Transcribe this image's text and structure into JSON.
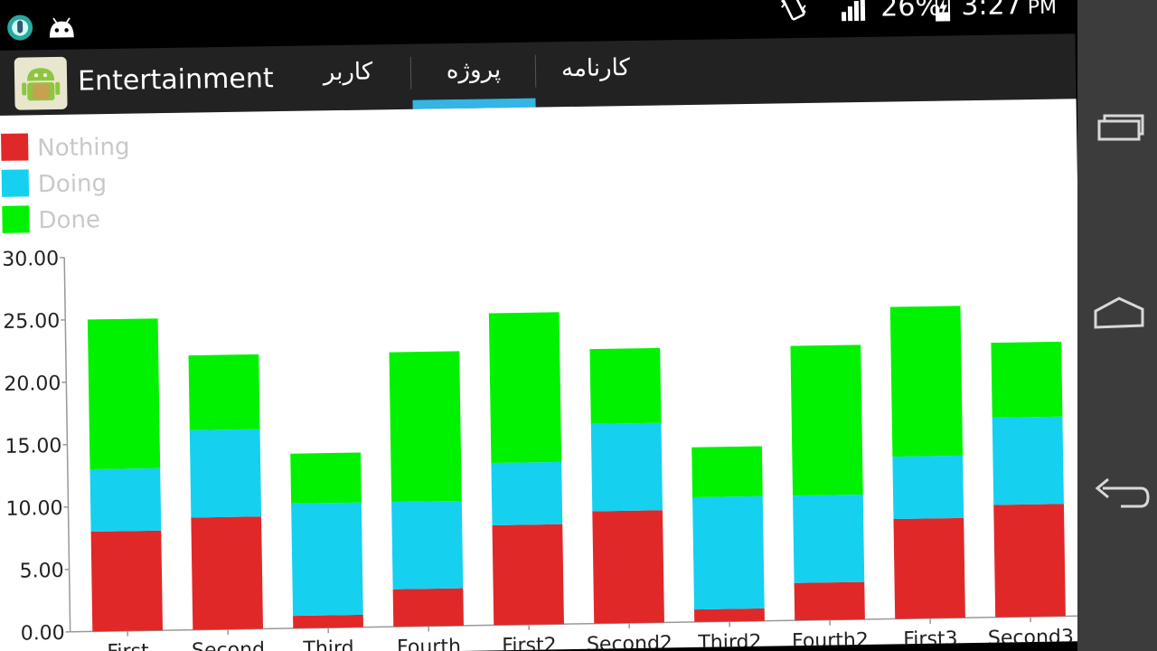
{
  "status_bar": {
    "battery_percent": "26%",
    "time": "3:27",
    "ampm": "PM",
    "icons": [
      "usb-debug-icon",
      "android-robot-icon",
      "vibrate-icon",
      "signal-icon",
      "battery-charging-icon"
    ]
  },
  "action_bar": {
    "app_title": "Entertainment",
    "tabs": [
      {
        "label": "کاربر",
        "selected": false
      },
      {
        "label": "پروژه",
        "selected": true
      },
      {
        "label": "کارنامه",
        "selected": false
      }
    ],
    "accent_color": "#33b5e5"
  },
  "nav_bar": {
    "buttons": [
      "recent-apps",
      "home",
      "back"
    ]
  },
  "chart_data": {
    "type": "bar",
    "stacked": true,
    "categories": [
      "First",
      "Second",
      "Third",
      "Fourth",
      "First2",
      "Second2",
      "Third2",
      "Fourth2",
      "First3",
      "Second3"
    ],
    "series": [
      {
        "name": "Nothing",
        "color": "#e02828",
        "values": [
          8.0,
          9.0,
          1.0,
          3.0,
          8.0,
          9.0,
          1.0,
          3.0,
          8.0,
          9.0
        ]
      },
      {
        "name": "Doing",
        "color": "#16d0f0",
        "values": [
          5.0,
          7.0,
          9.0,
          7.0,
          5.0,
          7.0,
          9.0,
          7.0,
          5.0,
          7.0
        ]
      },
      {
        "name": "Done",
        "color": "#00f200",
        "values": [
          12.0,
          6.0,
          4.0,
          12.0,
          12.0,
          6.0,
          4.0,
          12.0,
          12.0,
          6.0
        ]
      }
    ],
    "ylim": [
      0,
      30
    ],
    "yticks": [
      "0.00",
      "5.00",
      "10.00",
      "15.00",
      "20.00",
      "25.00",
      "30.00"
    ],
    "legend_position": "top-left",
    "grid": false
  }
}
